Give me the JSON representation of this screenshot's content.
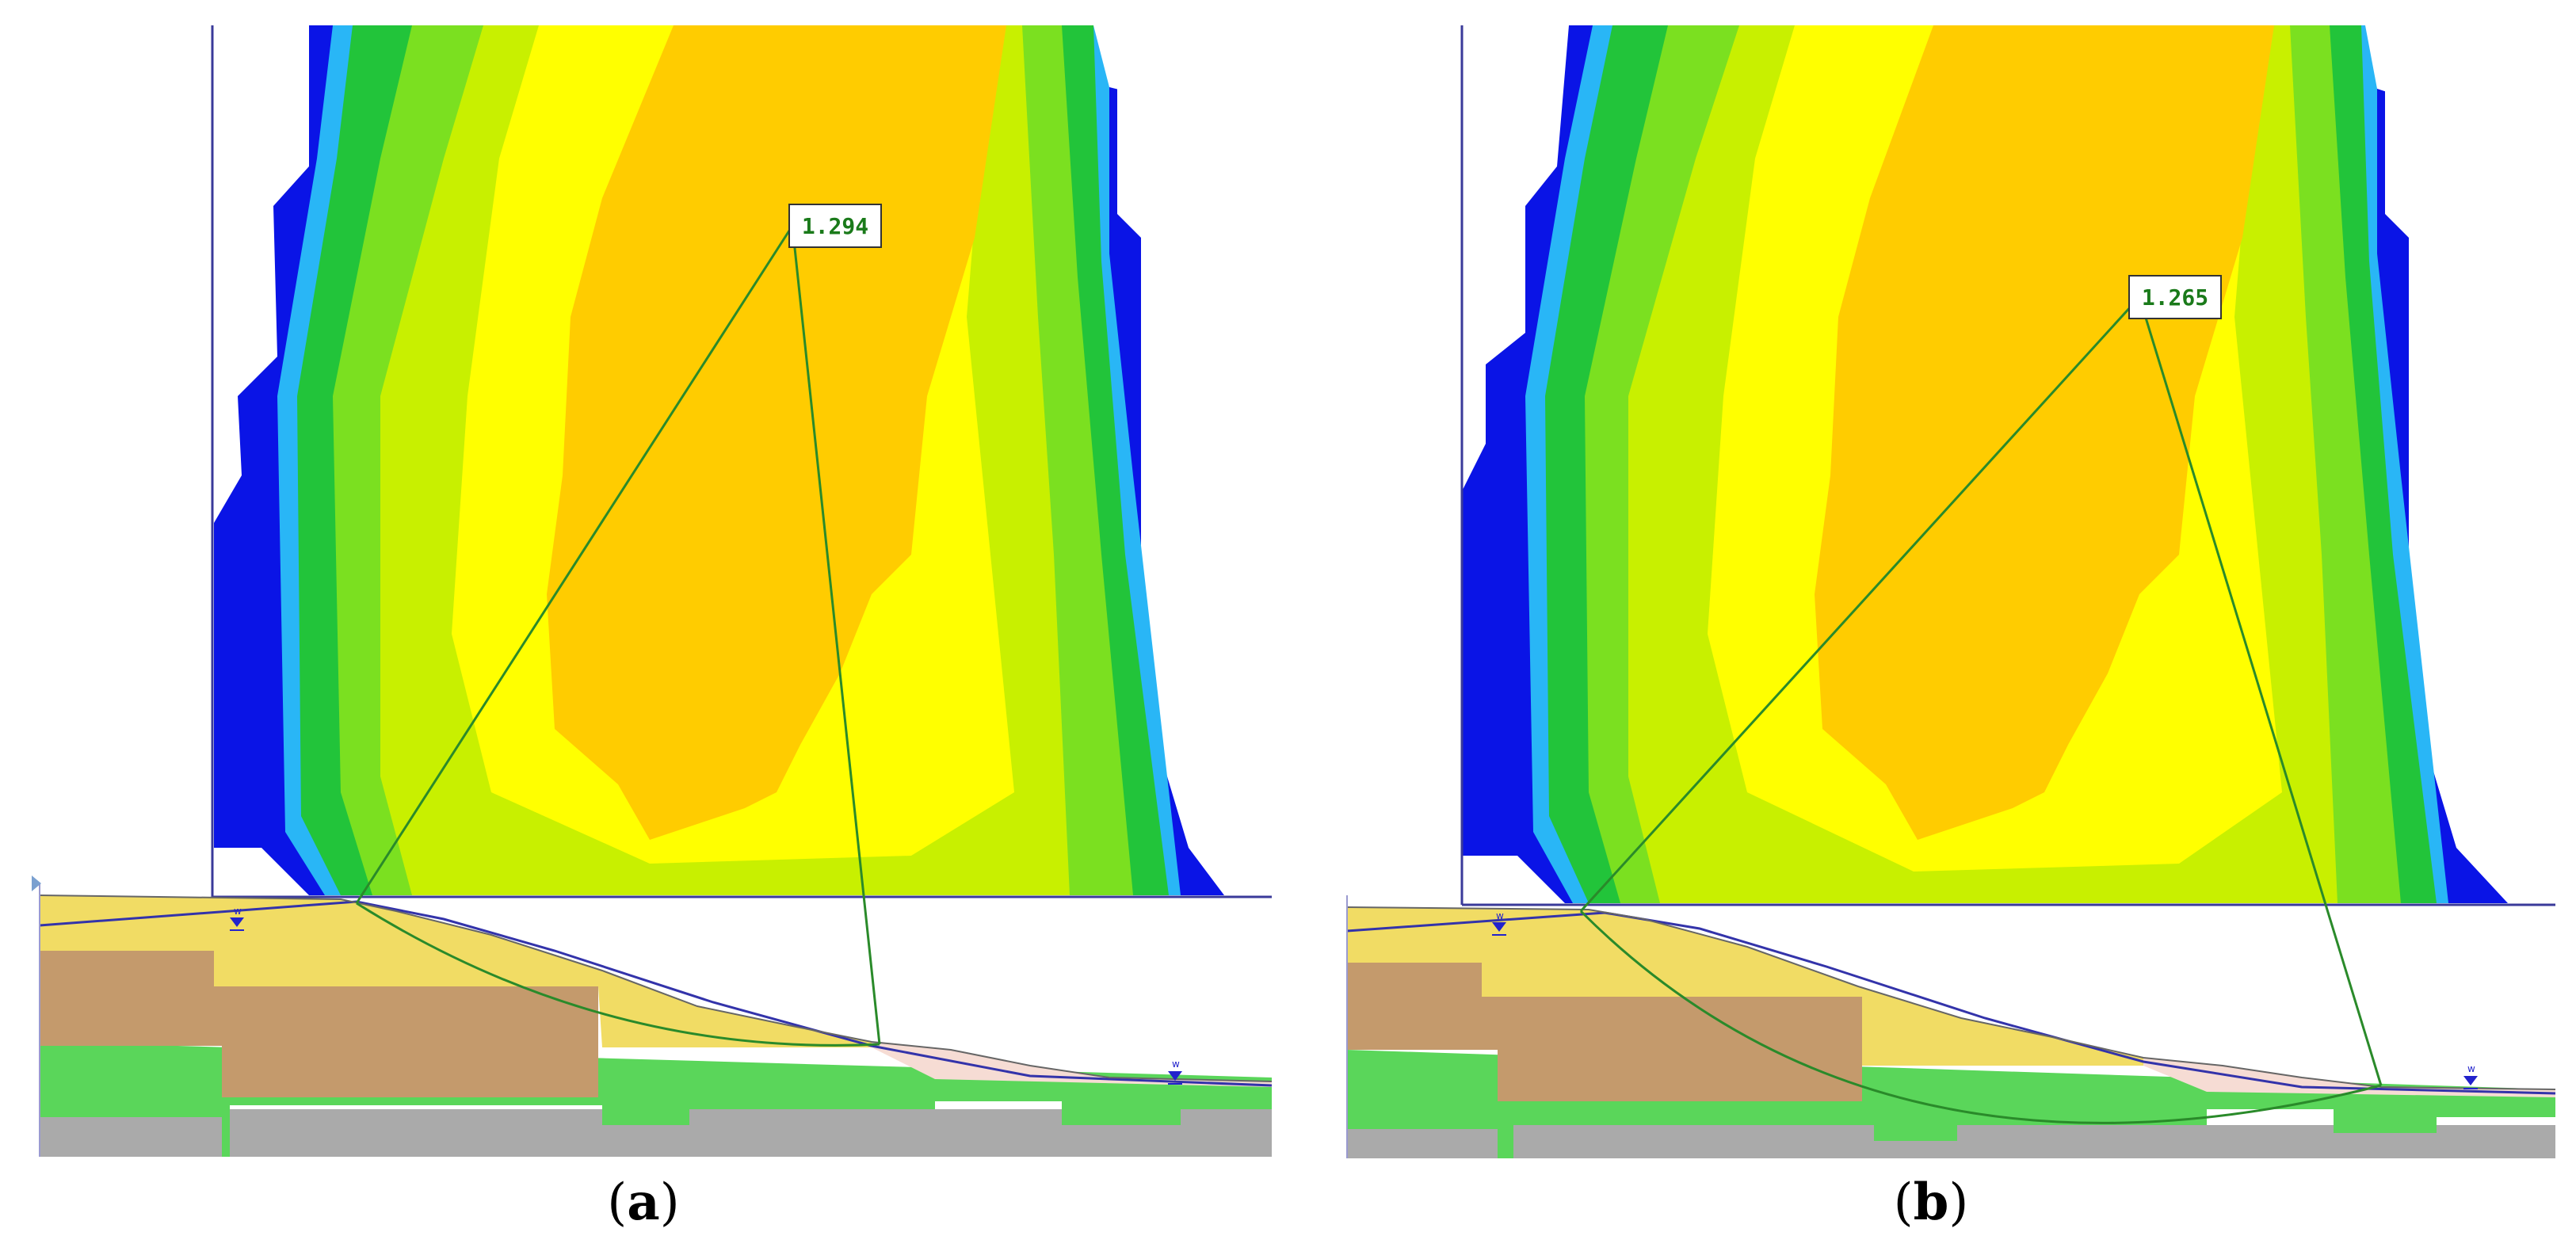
{
  "panels": [
    {
      "id": "a",
      "factor_of_safety": "1.294",
      "caption_letter": "a"
    },
    {
      "id": "b",
      "factor_of_safety": "1.265",
      "caption_letter": "b"
    }
  ],
  "water_table_marker": "w",
  "colors": {
    "contour_blue": "#0a14e6",
    "contour_cyan": "#29b6f6",
    "contour_green": "#22c43a",
    "contour_lightgreen": "#7be020",
    "contour_yellowgreen": "#c8f000",
    "contour_yellow": "#ffff00",
    "contour_orange": "#ffcc00",
    "soil_sand": "#f1dc64",
    "soil_clay": "#c49a6c",
    "soil_green": "#5ad65a",
    "soil_rock": "#aaaaaa",
    "soil_pink": "#f6dcd4",
    "water_line": "#3333aa",
    "slip_surface": "#2a8a2a"
  }
}
